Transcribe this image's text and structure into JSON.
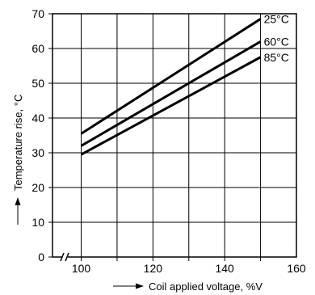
{
  "chart_data": {
    "type": "line",
    "title": "",
    "xlabel": "Coil applied voltage, %V",
    "ylabel": "Temperature rise, °C",
    "xlim": [
      92,
      160
    ],
    "ylim": [
      0,
      70
    ],
    "x_ticks": [
      100,
      120,
      140,
      160
    ],
    "y_ticks": [
      0,
      10,
      20,
      30,
      40,
      50,
      60,
      70
    ],
    "grid": true,
    "axis_break": "x-axis between origin and 100",
    "series": [
      {
        "name": "25°C",
        "x": [
          100,
          150
        ],
        "y": [
          35.5,
          68.5
        ]
      },
      {
        "name": "60°C",
        "x": [
          100,
          150
        ],
        "y": [
          32,
          62
        ]
      },
      {
        "name": "85°C",
        "x": [
          100,
          150
        ],
        "y": [
          29.5,
          57.5
        ]
      }
    ]
  }
}
